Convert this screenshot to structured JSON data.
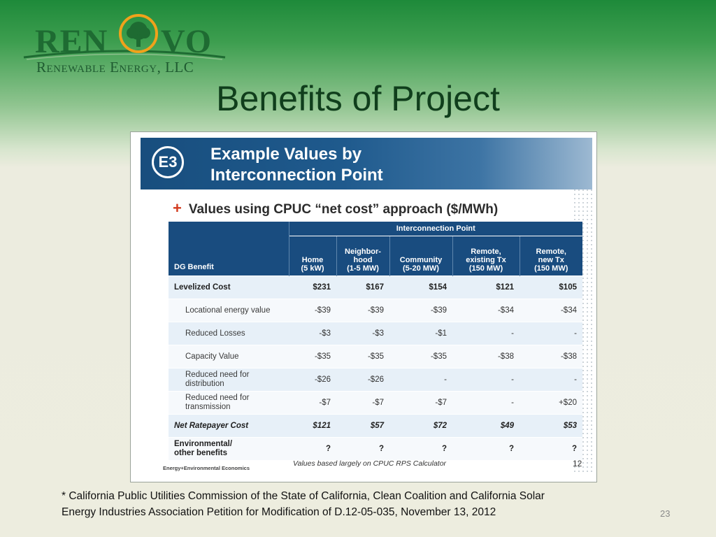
{
  "logo": {
    "word_left": "REN",
    "word_right": "VO",
    "sub": "Renewable Energy, LLC"
  },
  "slide": {
    "title": "Benefits of Project",
    "number": "23"
  },
  "inset": {
    "banner_line1": "Example Values by",
    "banner_line2": "Interconnection Point",
    "logo_text": "E3",
    "bullet": "Values using CPUC “net cost” approach ($/MWh)",
    "table": {
      "group_header": "Interconnection Point",
      "row_header": "DG Benefit",
      "columns": [
        [
          "Home",
          "(5 kW)"
        ],
        [
          "Neighbor-",
          "hood",
          "(1-5 MW)"
        ],
        [
          "Community",
          "(5-20 MW)"
        ],
        [
          "Remote,",
          "existing Tx",
          "(150 MW)"
        ],
        [
          "Remote,",
          "new Tx",
          "(150 MW)"
        ]
      ],
      "rows": [
        {
          "label": [
            "Levelized Cost"
          ],
          "values": [
            "$231",
            "$167",
            "$154",
            "$121",
            "$105"
          ]
        },
        {
          "label": [
            "Locational energy value"
          ],
          "values": [
            "-$39",
            "-$39",
            "-$39",
            "-$34",
            "-$34"
          ]
        },
        {
          "label": [
            "Reduced Losses"
          ],
          "values": [
            "-$3",
            "-$3",
            "-$1",
            "-",
            "-"
          ]
        },
        {
          "label": [
            "Capacity Value"
          ],
          "values": [
            "-$35",
            "-$35",
            "-$35",
            "-$38",
            "-$38"
          ]
        },
        {
          "label": [
            "Reduced need for",
            "distribution"
          ],
          "values": [
            "-$26",
            "-$26",
            "-",
            "-",
            "-"
          ]
        },
        {
          "label": [
            "Reduced need for",
            "transmission"
          ],
          "values": [
            "-$7",
            "-$7",
            "-$7",
            "-",
            "+$20"
          ]
        },
        {
          "label": [
            "Net Ratepayer Cost"
          ],
          "values": [
            "$121",
            "$57",
            "$72",
            "$49",
            "$53"
          ]
        },
        {
          "label": [
            "Environmental/",
            "other benefits"
          ],
          "values": [
            "?",
            "?",
            "?",
            "?",
            "?"
          ]
        }
      ]
    },
    "footer_left": "Energy+Environmental Economics",
    "footer_mid": "Values based largely on CPUC RPS Calculator",
    "footer_page": "12"
  },
  "footnote": {
    "line1": "* California Public Utilities Commission of the State of California, Clean Coalition and California Solar",
    "line2": "Energy Industries Association Petition for Modification of D.12-05-035, November 13, 2012"
  },
  "colors": {
    "title": "#103e1c",
    "banner": "#194c7f",
    "logo_green": "#1e6b32",
    "logo_sun": "#f0a21b",
    "plus": "#d33b1f"
  }
}
